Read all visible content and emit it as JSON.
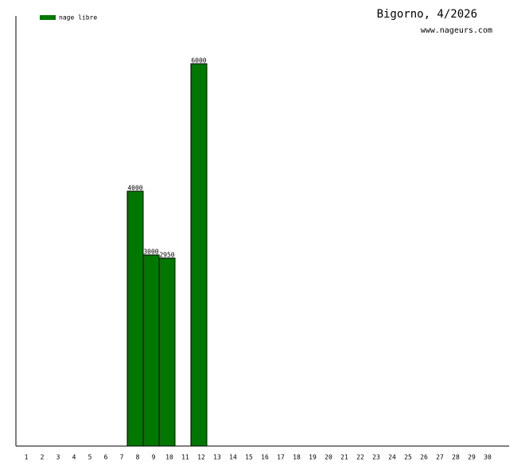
{
  "chart_data": {
    "type": "bar",
    "title": "Bigorno, 4/2026",
    "subtitle": "www.nageurs.com",
    "categories": [
      "1",
      "2",
      "3",
      "4",
      "5",
      "6",
      "7",
      "8",
      "9",
      "10",
      "11",
      "12",
      "13",
      "14",
      "15",
      "16",
      "17",
      "18",
      "19",
      "20",
      "21",
      "22",
      "23",
      "24",
      "25",
      "26",
      "27",
      "28",
      "29",
      "30"
    ],
    "series": [
      {
        "name": "nage libre",
        "color": "#007800",
        "values": [
          null,
          null,
          null,
          null,
          null,
          null,
          null,
          4000,
          3000,
          2950,
          null,
          6000,
          null,
          null,
          null,
          null,
          null,
          null,
          null,
          null,
          null,
          null,
          null,
          null,
          null,
          null,
          null,
          null,
          null,
          null
        ]
      }
    ],
    "ylim": [
      0,
      6750
    ]
  }
}
